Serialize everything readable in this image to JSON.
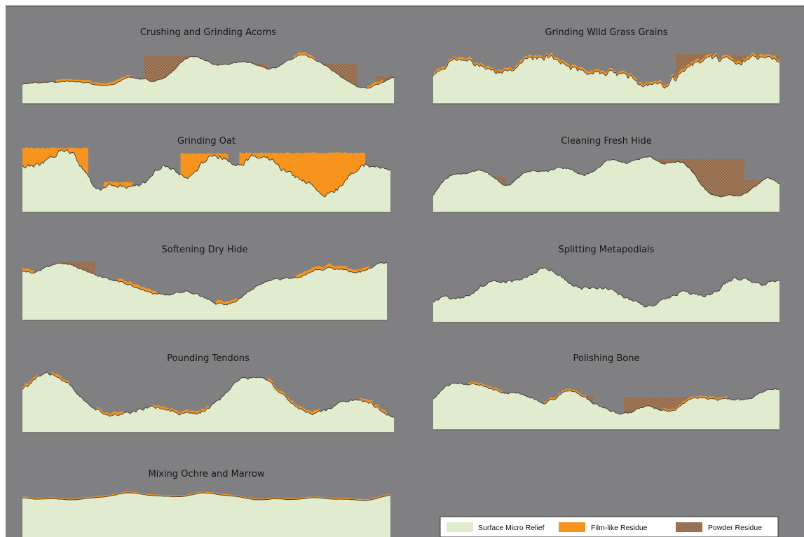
{
  "panels": [
    {
      "title": "Crushing and Grinding Acorns"
    },
    {
      "title": "Grinding Wild Grass Grains"
    },
    {
      "title": "Grinding Oat"
    },
    {
      "title": "Cleaning Fresh Hide"
    },
    {
      "title": "Softening Dry Hide"
    },
    {
      "title": "Splitting Metapodials"
    },
    {
      "title": "Pounding Tendons"
    },
    {
      "title": "Polishing Bone"
    },
    {
      "title": "Mixing Ochre and Marrow"
    }
  ],
  "legend": [
    {
      "label": "Surface Micro Relief"
    },
    {
      "label": "Film-like Residue"
    },
    {
      "label": "Powder Residue"
    }
  ]
}
